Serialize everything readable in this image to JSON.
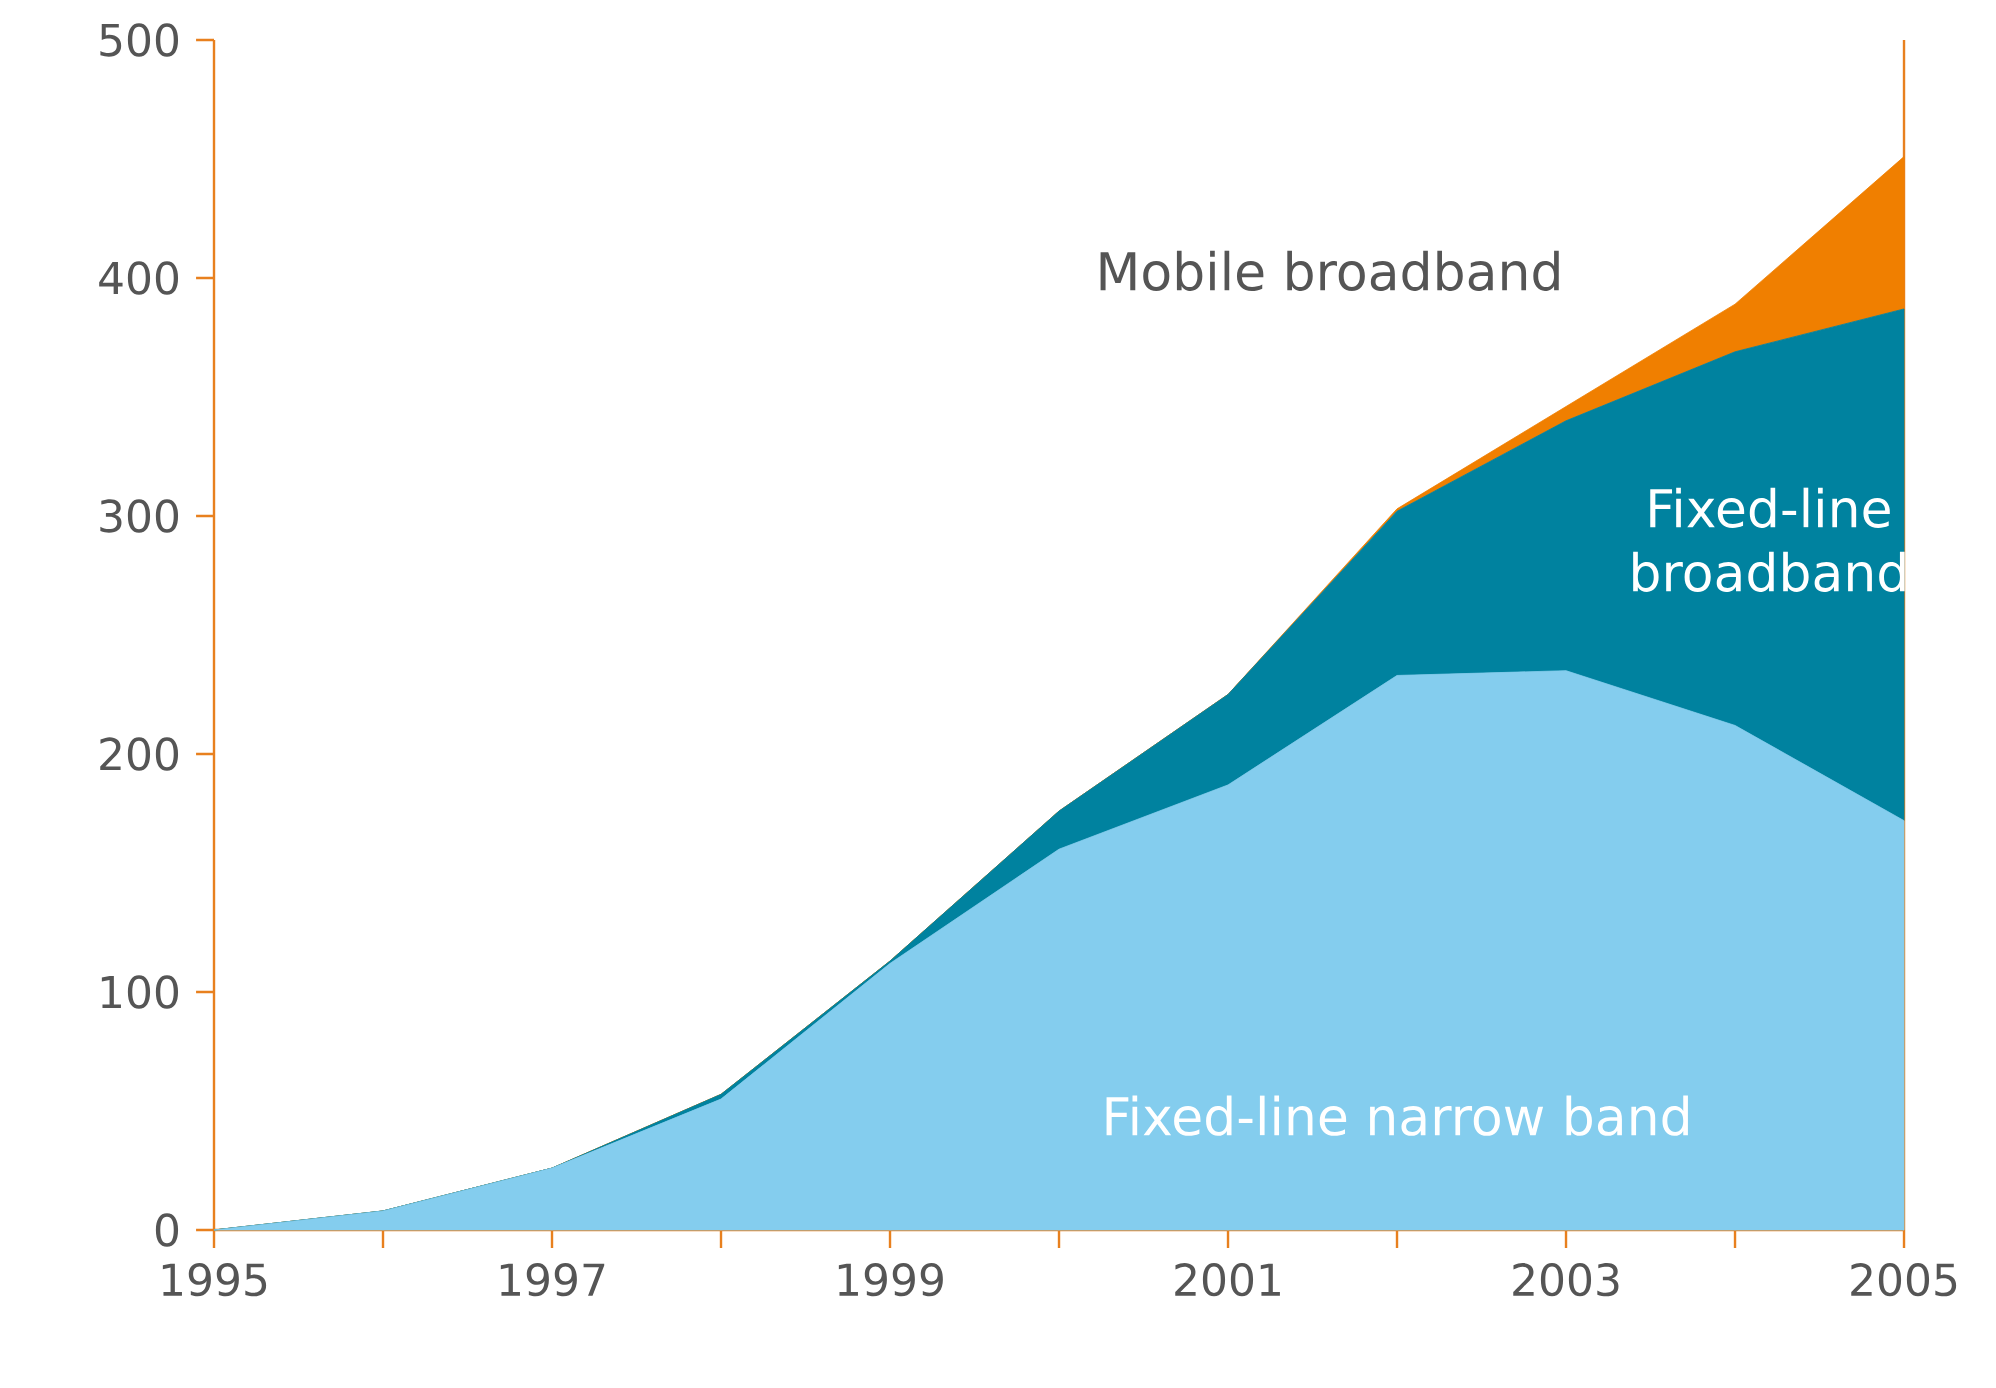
{
  "chart_data": {
    "type": "area",
    "stacked": true,
    "legend": false,
    "x": [
      1995,
      1996,
      1997,
      1998,
      1999,
      2000,
      2001,
      2002,
      2003,
      2004,
      2005
    ],
    "series": [
      {
        "name": "Fixed-line narrow band",
        "color": "#84cdee",
        "values": [
          0,
          8,
          26,
          55,
          112,
          160,
          187,
          233,
          235,
          212,
          172
        ]
      },
      {
        "name": "Fixed-line broadband",
        "color": "#00829f",
        "values": [
          0,
          0,
          0,
          2,
          1,
          16,
          38,
          69,
          105,
          157,
          215
        ]
      },
      {
        "name": "Mobile broadband",
        "color": "#f07f00",
        "values": [
          0,
          0,
          0,
          0,
          0,
          0,
          0,
          1,
          6,
          20,
          64
        ]
      }
    ],
    "xlim": [
      1995,
      2005
    ],
    "ylim": [
      0,
      500
    ],
    "xticks": [
      1995,
      {
        "value": 1996,
        "label": null
      },
      1997,
      {
        "value": 1998,
        "label": null
      },
      1999,
      {
        "value": 2000,
        "label": null
      },
      2001,
      {
        "value": 2002,
        "label": null
      },
      2003,
      {
        "value": 2004,
        "label": null
      },
      2005
    ],
    "yticks": [
      0,
      100,
      200,
      300,
      400,
      500
    ]
  }
}
